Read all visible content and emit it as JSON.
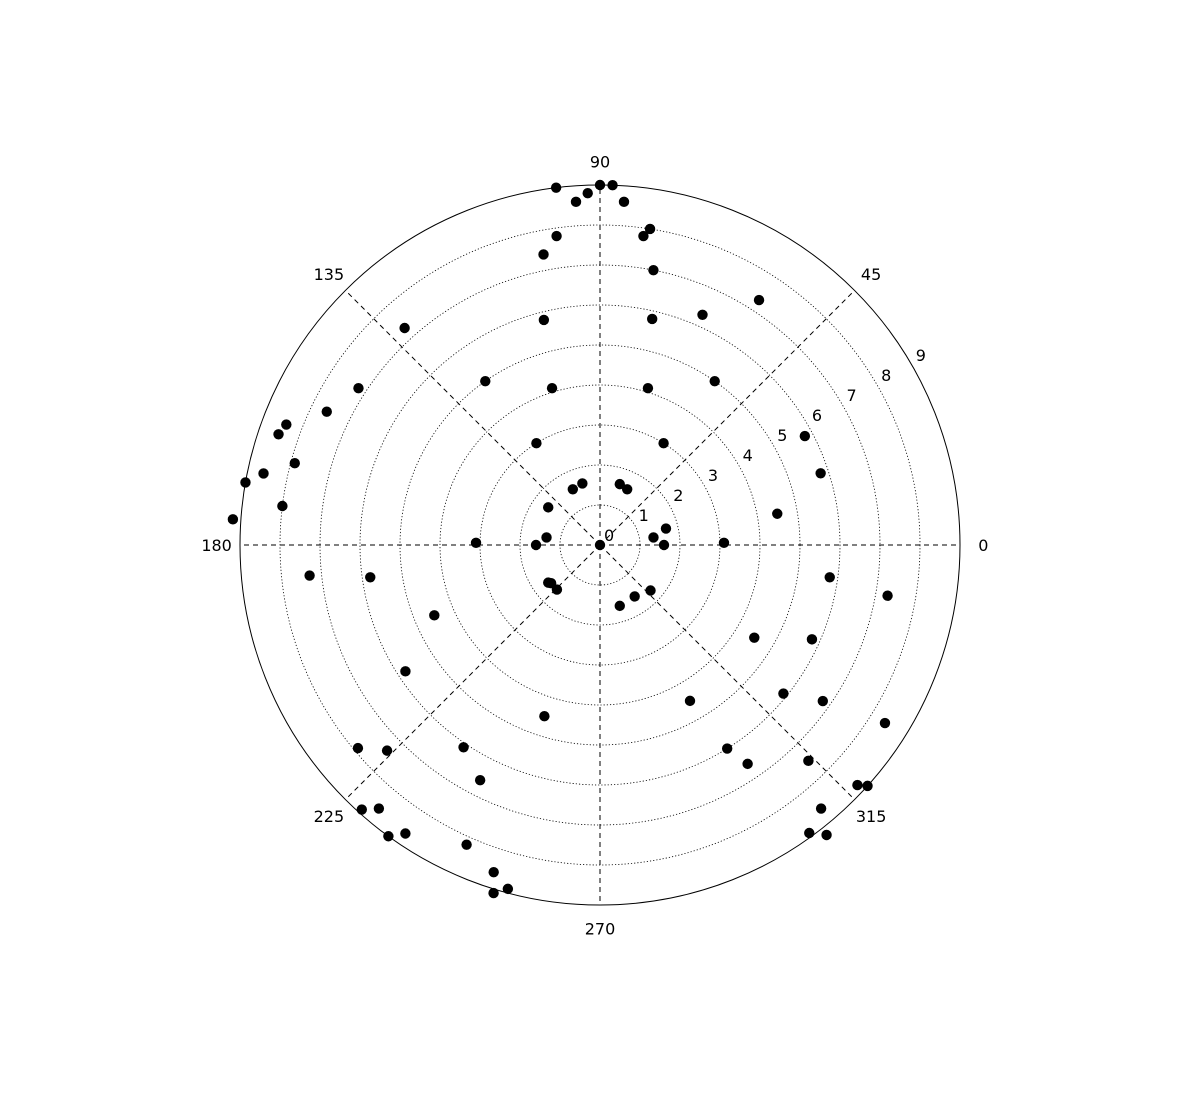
{
  "chart_data": {
    "type": "scatter",
    "coordinate_system": "polar",
    "title": "",
    "angle_unit": "degrees",
    "angle_tick_labels": [
      "0",
      "45",
      "90",
      "135",
      "180",
      "225",
      "270",
      "315"
    ],
    "angle_ticks": [
      0,
      45,
      90,
      135,
      180,
      225,
      270,
      315
    ],
    "radial_tick_labels": [
      "0",
      "1",
      "2",
      "3",
      "4",
      "5",
      "6",
      "7",
      "8",
      "9"
    ],
    "radial_ticks": [
      0,
      1,
      2,
      3,
      4,
      5,
      6,
      7,
      8,
      9
    ],
    "radial_range": [
      0,
      9
    ],
    "radial_label_angle": 30,
    "grid": true,
    "marker": "filled-circle",
    "marker_color": "#000000",
    "points": [
      {
        "theta": 0,
        "r": 0
      },
      {
        "theta": 0,
        "r": 1.6
      },
      {
        "theta": 72,
        "r": 1.6
      },
      {
        "theta": 144,
        "r": 1.6
      },
      {
        "theta": 216,
        "r": 1.6
      },
      {
        "theta": 288,
        "r": 1.6
      },
      {
        "theta": 8,
        "r": 1.35
      },
      {
        "theta": 64,
        "r": 1.55
      },
      {
        "theta": 116,
        "r": 1.55
      },
      {
        "theta": 172,
        "r": 1.35
      },
      {
        "theta": 226,
        "r": 1.55
      },
      {
        "theta": 304,
        "r": 1.55
      },
      {
        "theta": 14,
        "r": 1.7
      },
      {
        "theta": 106,
        "r": 1.6
      },
      {
        "theta": 218,
        "r": 1.55
      },
      {
        "theta": 318,
        "r": 1.7
      },
      {
        "theta": 1,
        "r": 3.1
      },
      {
        "theta": 10,
        "r": 4.5
      },
      {
        "theta": 18,
        "r": 5.8
      },
      {
        "theta": 28,
        "r": 5.8
      },
      {
        "theta": 58,
        "r": 3.0
      },
      {
        "theta": 55,
        "r": 5.0
      },
      {
        "theta": 57,
        "r": 7.3
      },
      {
        "theta": 66,
        "r": 6.3
      },
      {
        "theta": 73,
        "r": 4.1
      },
      {
        "theta": 77,
        "r": 5.8
      },
      {
        "theta": 79,
        "r": 7.0
      },
      {
        "theta": 81,
        "r": 8.0
      },
      {
        "theta": 82,
        "r": 7.8
      },
      {
        "theta": 86,
        "r": 8.6
      },
      {
        "theta": 88,
        "r": 9.0
      },
      {
        "theta": 90,
        "r": 9.0
      },
      {
        "theta": 92,
        "r": 8.8
      },
      {
        "theta": 94,
        "r": 8.6
      },
      {
        "theta": 97,
        "r": 9.0
      },
      {
        "theta": 98,
        "r": 7.8
      },
      {
        "theta": 101,
        "r": 7.4
      },
      {
        "theta": 104,
        "r": 5.8
      },
      {
        "theta": 107,
        "r": 4.1
      },
      {
        "theta": 122,
        "r": 3.0
      },
      {
        "theta": 125,
        "r": 5.0
      },
      {
        "theta": 132,
        "r": 7.3
      },
      {
        "theta": 147,
        "r": 7.2
      },
      {
        "theta": 154,
        "r": 7.6
      },
      {
        "theta": 159,
        "r": 8.4
      },
      {
        "theta": 161,
        "r": 8.5
      },
      {
        "theta": 165,
        "r": 7.9
      },
      {
        "theta": 168,
        "r": 8.6
      },
      {
        "theta": 170,
        "r": 9.0
      },
      {
        "theta": 173,
        "r": 8.0
      },
      {
        "theta": 176,
        "r": 9.2
      },
      {
        "theta": 179,
        "r": 3.1
      },
      {
        "theta": 180,
        "r": 1.6
      },
      {
        "theta": 186,
        "r": 7.3
      },
      {
        "theta": 188,
        "r": 5.8
      },
      {
        "theta": 203,
        "r": 4.5
      },
      {
        "theta": 213,
        "r": 5.8
      },
      {
        "theta": 220,
        "r": 7.9
      },
      {
        "theta": 224,
        "r": 7.4
      },
      {
        "theta": 228,
        "r": 8.9
      },
      {
        "theta": 230,
        "r": 8.6
      },
      {
        "theta": 234,
        "r": 9.0
      },
      {
        "theta": 236,
        "r": 8.7
      },
      {
        "theta": 236,
        "r": 6.1
      },
      {
        "theta": 243,
        "r": 6.6
      },
      {
        "theta": 246,
        "r": 8.2
      },
      {
        "theta": 252,
        "r": 8.6
      },
      {
        "theta": 252,
        "r": 4.5
      },
      {
        "theta": 253,
        "r": 9.1
      },
      {
        "theta": 255,
        "r": 8.9
      },
      {
        "theta": 300,
        "r": 4.5
      },
      {
        "theta": 302,
        "r": 6.0
      },
      {
        "theta": 304,
        "r": 6.6
      },
      {
        "theta": 306,
        "r": 8.9
      },
      {
        "theta": 308,
        "r": 9.2
      },
      {
        "theta": 310,
        "r": 8.6
      },
      {
        "theta": 314,
        "r": 7.5
      },
      {
        "theta": 317,
        "r": 8.8
      },
      {
        "theta": 318,
        "r": 9.0
      },
      {
        "theta": 321,
        "r": 5.9
      },
      {
        "theta": 325,
        "r": 6.8
      },
      {
        "theta": 328,
        "r": 8.4
      },
      {
        "theta": 329,
        "r": 4.5
      },
      {
        "theta": 336,
        "r": 5.8
      },
      {
        "theta": 350,
        "r": 7.3
      },
      {
        "theta": 352,
        "r": 5.8
      }
    ]
  }
}
